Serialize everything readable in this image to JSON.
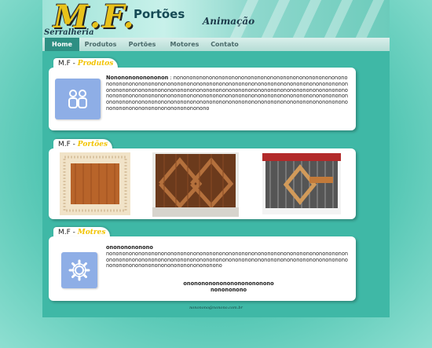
{
  "banner": {
    "logo": "M.F.",
    "logo_sub": "Serralheria",
    "title": "Portões",
    "animation_label": "Animação"
  },
  "nav": {
    "items": [
      {
        "label": "Home",
        "active": true
      },
      {
        "label": "Produtos",
        "active": false
      },
      {
        "label": "Portões",
        "active": false
      },
      {
        "label": "Motores",
        "active": false
      },
      {
        "label": "Contato",
        "active": false
      }
    ]
  },
  "sections": {
    "produtos": {
      "tab_prefix": "M.F",
      "tab_sep": " - ",
      "tab_title": "Produtos",
      "icon": "people-icon",
      "lead": "Nonononononononon",
      "body": " : nonononononononononononononononononononononononononononononononononononononononononononononononononononononononononononononononononononononononononononononononononononononononononononononononononononononononononononononononononononononononononononononononononononononononononononononononononononononononononononononononononononononononononononononononononononononononononononononononono"
    },
    "portoes": {
      "tab_prefix": "M.F",
      "tab_sep": " - ",
      "tab_title": "Portões"
    },
    "motores": {
      "tab_prefix": "M.F",
      "tab_sep": " - ",
      "tab_title": "Motres",
      "icon": "gear-icon",
      "lead": "onononononono",
      "body": "nonononononononononononononononononononononononononononononononononononononononononononononononononononononononononononononononononononononononononononononononononononononononononononono",
      "center_line1": "onononononononononononono",
      "center_line2": "nonononono"
    }
  },
  "footer": {
    "email": "nononono@nonono.com.br"
  },
  "colors": {
    "page_bg": "#3fb8a6",
    "nav_active": "#2e8f83",
    "tab_highlight": "#f2c300",
    "icon_bg": "#8eaee6"
  }
}
